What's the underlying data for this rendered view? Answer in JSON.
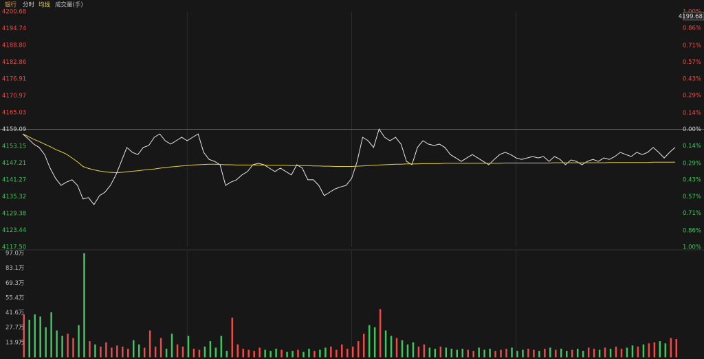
{
  "chart_data": [
    {
      "type": "line",
      "title": "银行",
      "title_color": "#e8a23c",
      "up_color": "#f04a44",
      "down_color": "#3fc65c",
      "flat_color": "#d0d0d0",
      "crosshair_label": "4199.68",
      "x": [
        0,
        2,
        4,
        6,
        8,
        10,
        12,
        14,
        16,
        18,
        20,
        22,
        24,
        26,
        28,
        30,
        32,
        34,
        36,
        38,
        40,
        42,
        44,
        46,
        48,
        50,
        52,
        54,
        56,
        58,
        60,
        62,
        64,
        66,
        68,
        70,
        72,
        74,
        76,
        78,
        80,
        82,
        84,
        86,
        88,
        90,
        92,
        94,
        96,
        98,
        100,
        102,
        104,
        106,
        108,
        110,
        112,
        114,
        116,
        118,
        120,
        122,
        124,
        126,
        128,
        130,
        132,
        134,
        136,
        138,
        140,
        142,
        144,
        146,
        148,
        150,
        152,
        154,
        156,
        158,
        160,
        162,
        164,
        166,
        168,
        170,
        172,
        174,
        176,
        178,
        180,
        182,
        184,
        186,
        188,
        190,
        192,
        194,
        196,
        198,
        200,
        202,
        204,
        206,
        208,
        210,
        212,
        214,
        216,
        218,
        220,
        222,
        224,
        226,
        228,
        230,
        232,
        234,
        236,
        238
      ],
      "xlim": [
        0,
        240
      ],
      "xticks": [
        60,
        120,
        180
      ],
      "ylim": [
        4117.5,
        4200.68
      ],
      "yticks": [
        4200.68,
        4194.74,
        {
          "value": 4188.8,
          "label": "4188.80"
        },
        4182.86,
        4176.91,
        4170.97,
        4165.03,
        4159.09,
        4153.15,
        4147.21,
        4141.27,
        4135.32,
        4129.38,
        4123.44,
        {
          "value": 4117.5,
          "label": "4117.50"
        }
      ],
      "y2lim": [
        -1.0,
        1.0
      ],
      "y2ticks": [
        {
          "value": 1.0,
          "label": "1.00%"
        },
        {
          "value": 0.86,
          "label": "0.86%"
        },
        {
          "value": 0.71,
          "label": "0.71%"
        },
        {
          "value": 0.57,
          "label": "0.57%"
        },
        {
          "value": 0.43,
          "label": "0.43%"
        },
        {
          "value": 0.29,
          "label": "0.29%"
        },
        {
          "value": 0.14,
          "label": "0.14%"
        },
        {
          "value": 0,
          "label": "0.00%"
        },
        {
          "value": -0.14,
          "label": "0.14%"
        },
        {
          "value": -0.29,
          "label": "0.29%"
        },
        {
          "value": -0.43,
          "label": "0.43%"
        },
        {
          "value": -0.57,
          "label": "0.57%"
        },
        {
          "value": -0.71,
          "label": "0.71%"
        },
        {
          "value": -0.86,
          "label": "0.86%"
        },
        {
          "value": -1.0,
          "label": "1.00%"
        }
      ],
      "series": [
        {
          "name": "分时",
          "color": "#e8e8e8",
          "values": [
            4157.5,
            4155.8,
            4153.9,
            4152.7,
            4150.2,
            4145.4,
            4141.8,
            4139.3,
            4140.5,
            4141.3,
            4139.3,
            4134.5,
            4135.0,
            4132.5,
            4135.7,
            4136.9,
            4139.3,
            4143.0,
            4147.8,
            4152.7,
            4151.0,
            4150.2,
            4152.7,
            4153.4,
            4156.3,
            4157.5,
            4155.1,
            4153.9,
            4155.1,
            4156.3,
            4155.1,
            4156.3,
            4157.5,
            4151.0,
            4148.5,
            4147.8,
            4146.6,
            4139.3,
            4140.5,
            4141.3,
            4143.0,
            4144.2,
            4146.6,
            4147.1,
            4146.6,
            4145.4,
            4144.2,
            4145.4,
            4144.2,
            4143.0,
            4146.6,
            4145.4,
            4141.3,
            4141.3,
            4139.3,
            4135.7,
            4136.9,
            4138.1,
            4138.8,
            4139.3,
            4141.8,
            4147.8,
            4156.3,
            4155.1,
            4152.7,
            4159.2,
            4156.3,
            4155.1,
            4156.3,
            4153.9,
            4147.8,
            4146.6,
            4152.7,
            4155.1,
            4153.9,
            4153.4,
            4153.9,
            4152.7,
            4150.2,
            4149.0,
            4147.8,
            4149.0,
            4150.2,
            4149.0,
            4147.8,
            4146.6,
            4148.5,
            4150.2,
            4151.0,
            4150.2,
            4149.0,
            4148.5,
            4149.0,
            4149.5,
            4149.0,
            4149.5,
            4147.8,
            4149.5,
            4148.5,
            4146.6,
            4148.3,
            4147.8,
            4146.6,
            4147.8,
            4148.5,
            4147.8,
            4149.0,
            4148.5,
            4149.5,
            4151.0,
            4150.2,
            4149.5,
            4151.0,
            4150.2,
            4151.0,
            4152.7,
            4151.0,
            4149.0,
            4151.0,
            4152.7
          ]
        },
        {
          "name": "均线",
          "color": "#e6d23c",
          "values": [
            4157.5,
            4156.6,
            4155.6,
            4154.8,
            4153.9,
            4153.0,
            4152.0,
            4151.2,
            4150.3,
            4149.0,
            4147.6,
            4146.0,
            4145.3,
            4144.8,
            4144.4,
            4144.1,
            4143.9,
            4143.8,
            4143.9,
            4144.1,
            4144.3,
            4144.5,
            4144.7,
            4144.9,
            4145.1,
            4145.4,
            4145.6,
            4145.8,
            4146.0,
            4146.2,
            4146.3,
            4146.5,
            4146.6,
            4146.7,
            4146.8,
            4146.8,
            4146.7,
            4146.6,
            4146.6,
            4146.5,
            4146.5,
            4146.5,
            4146.5,
            4146.5,
            4146.5,
            4146.4,
            4146.4,
            4146.4,
            4146.4,
            4146.3,
            4146.3,
            4146.3,
            4146.3,
            4146.2,
            4146.2,
            4146.1,
            4146.1,
            4146.0,
            4146.0,
            4146.0,
            4146.0,
            4146.1,
            4146.2,
            4146.3,
            4146.4,
            4146.5,
            4146.6,
            4146.7,
            4146.8,
            4146.8,
            4146.9,
            4146.9,
            4146.9,
            4147.0,
            4147.0,
            4147.0,
            4147.0,
            4147.1,
            4147.1,
            4147.1,
            4147.1,
            4147.1,
            4147.1,
            4147.1,
            4147.1,
            4147.1,
            4147.1,
            4147.1,
            4147.2,
            4147.2,
            4147.2,
            4147.2,
            4147.2,
            4147.2,
            4147.2,
            4147.2,
            4147.2,
            4147.3,
            4147.3,
            4147.3,
            4147.3,
            4147.3,
            4147.3,
            4147.3,
            4147.3,
            4147.3,
            4147.3,
            4147.4,
            4147.4,
            4147.4,
            4147.4,
            4147.4,
            4147.4,
            4147.4,
            4147.4,
            4147.5,
            4147.5,
            4147.5,
            4147.5,
            4147.5
          ]
        }
      ]
    },
    {
      "type": "bar",
      "title": "成交量(手)",
      "x": [
        0,
        2,
        4,
        6,
        8,
        10,
        12,
        14,
        16,
        18,
        20,
        22,
        24,
        26,
        28,
        30,
        32,
        34,
        36,
        38,
        40,
        42,
        44,
        46,
        48,
        50,
        52,
        54,
        56,
        58,
        60,
        62,
        64,
        66,
        68,
        70,
        72,
        74,
        76,
        78,
        80,
        82,
        84,
        86,
        88,
        90,
        92,
        94,
        96,
        98,
        100,
        102,
        104,
        106,
        108,
        110,
        112,
        114,
        116,
        118,
        120,
        122,
        124,
        126,
        128,
        130,
        132,
        134,
        136,
        138,
        140,
        142,
        144,
        146,
        148,
        150,
        152,
        154,
        156,
        158,
        160,
        162,
        164,
        166,
        168,
        170,
        172,
        174,
        176,
        178,
        180,
        182,
        184,
        186,
        188,
        190,
        192,
        194,
        196,
        198,
        200,
        202,
        204,
        206,
        208,
        210,
        212,
        214,
        216,
        218,
        220,
        222,
        224,
        226,
        228,
        230,
        232,
        234,
        236,
        238
      ],
      "xlim": [
        0,
        240
      ],
      "xticks": [
        60,
        120,
        180
      ],
      "ylim": [
        0,
        97
      ],
      "yticks": [
        {
          "value": 97.0,
          "label": "97.0万"
        },
        {
          "value": 83.1,
          "label": "83.1万"
        },
        {
          "value": 69.3,
          "label": "69.3万"
        },
        {
          "value": 55.4,
          "label": "55.4万"
        },
        {
          "value": 41.6,
          "label": "41.6万"
        },
        {
          "value": 27.7,
          "label": "27.7万"
        },
        {
          "value": 13.9,
          "label": "13.9万"
        }
      ],
      "values": [
        40,
        35,
        40,
        38,
        28,
        42,
        25,
        20,
        22,
        18,
        30,
        97,
        15,
        12,
        10,
        14,
        9,
        11,
        10,
        8,
        16,
        12,
        9,
        25,
        10,
        18,
        8,
        22,
        12,
        10,
        20,
        8,
        7,
        10,
        15,
        9,
        20,
        6,
        37,
        12,
        8,
        7,
        6,
        9,
        7,
        6,
        8,
        7,
        5,
        6,
        7,
        5,
        8,
        6,
        7,
        9,
        10,
        7,
        12,
        8,
        10,
        15,
        22,
        30,
        28,
        45,
        25,
        20,
        18,
        16,
        12,
        14,
        10,
        12,
        9,
        8,
        10,
        9,
        8,
        7,
        8,
        7,
        6,
        9,
        7,
        8,
        6,
        7,
        8,
        9,
        6,
        7,
        8,
        7,
        6,
        8,
        9,
        7,
        8,
        6,
        7,
        8,
        6,
        9,
        8,
        7,
        9,
        8,
        10,
        8,
        9,
        11,
        10,
        12,
        13,
        14,
        15,
        13,
        18,
        17
      ]
    }
  ]
}
